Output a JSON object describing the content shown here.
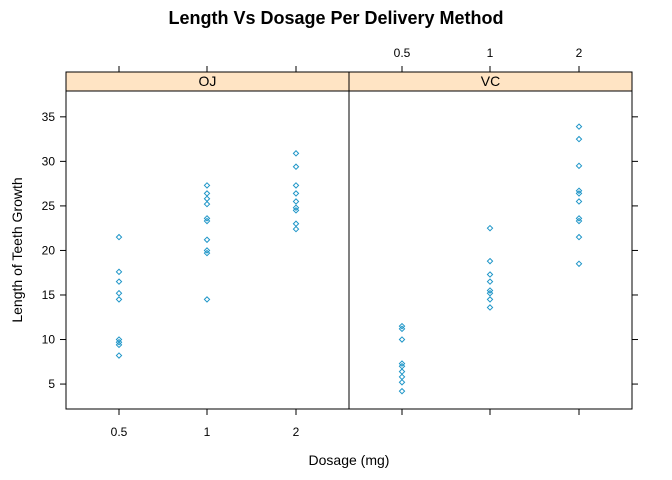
{
  "chart_data": {
    "type": "scatter",
    "title": "Length Vs Dosage Per Delivery Method",
    "xlabel": "Dosage (mg)",
    "ylabel": "Length of Teeth Growth",
    "x_categories": [
      "0.5",
      "1",
      "2"
    ],
    "ylim": [
      2.2,
      37.9
    ],
    "y_ticks": [
      5,
      10,
      15,
      20,
      25,
      30,
      35
    ],
    "grid": false,
    "point_color": "#1f96c8",
    "strip_color": "#ffe4c4",
    "panels": [
      {
        "name": "OJ",
        "points": [
          {
            "x": "0.5",
            "y": 21.5
          },
          {
            "x": "0.5",
            "y": 17.6
          },
          {
            "x": "0.5",
            "y": 16.5
          },
          {
            "x": "0.5",
            "y": 15.2
          },
          {
            "x": "0.5",
            "y": 14.5
          },
          {
            "x": "0.5",
            "y": 10.0
          },
          {
            "x": "0.5",
            "y": 9.7
          },
          {
            "x": "0.5",
            "y": 9.4
          },
          {
            "x": "0.5",
            "y": 8.2
          },
          {
            "x": "1",
            "y": 27.3
          },
          {
            "x": "1",
            "y": 26.4
          },
          {
            "x": "1",
            "y": 25.8
          },
          {
            "x": "1",
            "y": 25.2
          },
          {
            "x": "1",
            "y": 23.6
          },
          {
            "x": "1",
            "y": 23.3
          },
          {
            "x": "1",
            "y": 21.2
          },
          {
            "x": "1",
            "y": 20.0
          },
          {
            "x": "1",
            "y": 19.7
          },
          {
            "x": "1",
            "y": 14.5
          },
          {
            "x": "2",
            "y": 30.9
          },
          {
            "x": "2",
            "y": 29.4
          },
          {
            "x": "2",
            "y": 27.3
          },
          {
            "x": "2",
            "y": 26.4
          },
          {
            "x": "2",
            "y": 25.5
          },
          {
            "x": "2",
            "y": 24.8
          },
          {
            "x": "2",
            "y": 24.5
          },
          {
            "x": "2",
            "y": 23.0
          },
          {
            "x": "2",
            "y": 22.4
          }
        ]
      },
      {
        "name": "VC",
        "points": [
          {
            "x": "0.5",
            "y": 11.5
          },
          {
            "x": "0.5",
            "y": 11.2
          },
          {
            "x": "0.5",
            "y": 10.0
          },
          {
            "x": "0.5",
            "y": 7.3
          },
          {
            "x": "0.5",
            "y": 7.0
          },
          {
            "x": "0.5",
            "y": 6.4
          },
          {
            "x": "0.5",
            "y": 5.8
          },
          {
            "x": "0.5",
            "y": 5.2
          },
          {
            "x": "0.5",
            "y": 4.2
          },
          {
            "x": "1",
            "y": 22.5
          },
          {
            "x": "1",
            "y": 18.8
          },
          {
            "x": "1",
            "y": 17.3
          },
          {
            "x": "1",
            "y": 16.5
          },
          {
            "x": "1",
            "y": 15.5
          },
          {
            "x": "1",
            "y": 15.2
          },
          {
            "x": "1",
            "y": 14.5
          },
          {
            "x": "1",
            "y": 13.6
          },
          {
            "x": "2",
            "y": 33.9
          },
          {
            "x": "2",
            "y": 32.5
          },
          {
            "x": "2",
            "y": 29.5
          },
          {
            "x": "2",
            "y": 26.7
          },
          {
            "x": "2",
            "y": 26.4
          },
          {
            "x": "2",
            "y": 25.5
          },
          {
            "x": "2",
            "y": 23.6
          },
          {
            "x": "2",
            "y": 23.3
          },
          {
            "x": "2",
            "y": 21.5
          },
          {
            "x": "2",
            "y": 18.5
          }
        ]
      }
    ]
  }
}
